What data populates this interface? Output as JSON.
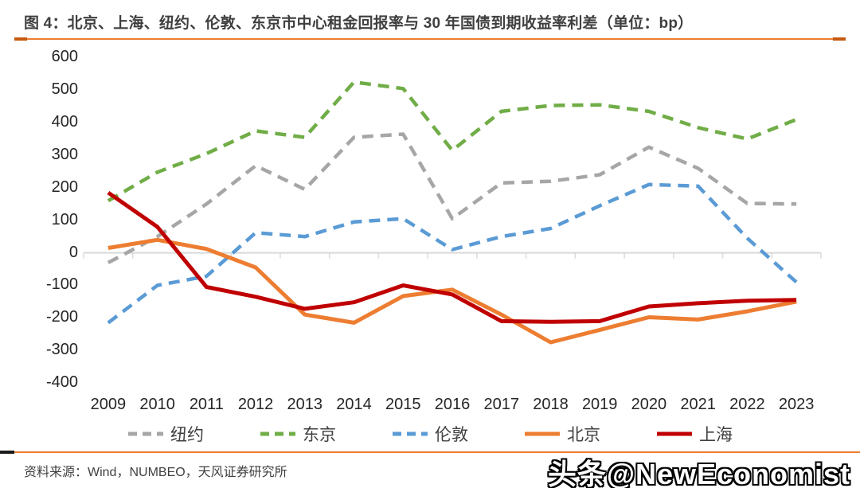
{
  "title": "图 4：北京、上海、纽约、伦敦、东京市中心租金回报率与 30 年国债到期收益率利差（单位：bp）",
  "footer": {
    "source": "资料来源：Wind，NUMBEO，天风证券研究所"
  },
  "watermark": "头条@NewEconomist",
  "colors": {
    "accent_rule": "#ed7d31",
    "rule_cap": "#c55a11",
    "footer_cap": "#1a1a1a",
    "axis_line": "#d9d9d9",
    "title_text": "#3f3f3f",
    "tick_text": "#262626"
  },
  "chart_data": {
    "type": "line",
    "title": "北京、上海、纽约、伦敦、东京市中心租金回报率与 30 年国债到期收益率利差",
    "unit": "bp",
    "categories": [
      "2009",
      "2010",
      "2011",
      "2012",
      "2013",
      "2014",
      "2015",
      "2016",
      "2017",
      "2018",
      "2019",
      "2020",
      "2021",
      "2022",
      "2023"
    ],
    "y_ticks": [
      600,
      500,
      400,
      300,
      200,
      100,
      0,
      -100,
      -200,
      -300,
      -400
    ],
    "ylim": [
      -400,
      600
    ],
    "grid": false,
    "legend_position": "bottom",
    "series": [
      {
        "name": "纽约",
        "color": "#a6a6a6",
        "style": "dashed",
        "values": [
          -30,
          50,
          150,
          268,
          195,
          355,
          365,
          105,
          215,
          220,
          240,
          325,
          260,
          152,
          150
        ]
      },
      {
        "name": "东京",
        "color": "#70ad47",
        "style": "dashed",
        "values": [
          160,
          248,
          305,
          375,
          355,
          525,
          505,
          315,
          435,
          453,
          455,
          435,
          385,
          350,
          410
        ]
      },
      {
        "name": "伦敦",
        "color": "#5b9bd5",
        "style": "dashed",
        "values": [
          -215,
          -100,
          -72,
          62,
          50,
          95,
          105,
          10,
          50,
          75,
          145,
          210,
          205,
          45,
          -90
        ]
      },
      {
        "name": "北京",
        "color": "#ed7d31",
        "style": "solid",
        "values": [
          15,
          40,
          12,
          -45,
          -190,
          -215,
          -133,
          -113,
          -190,
          -275,
          -237,
          -198,
          -205,
          -180,
          -150
        ]
      },
      {
        "name": "上海",
        "color": "#c00000",
        "style": "solid",
        "values": [
          185,
          80,
          -105,
          -135,
          -172,
          -152,
          -100,
          -128,
          -210,
          -212,
          -210,
          -165,
          -155,
          -147,
          -145
        ]
      }
    ]
  }
}
